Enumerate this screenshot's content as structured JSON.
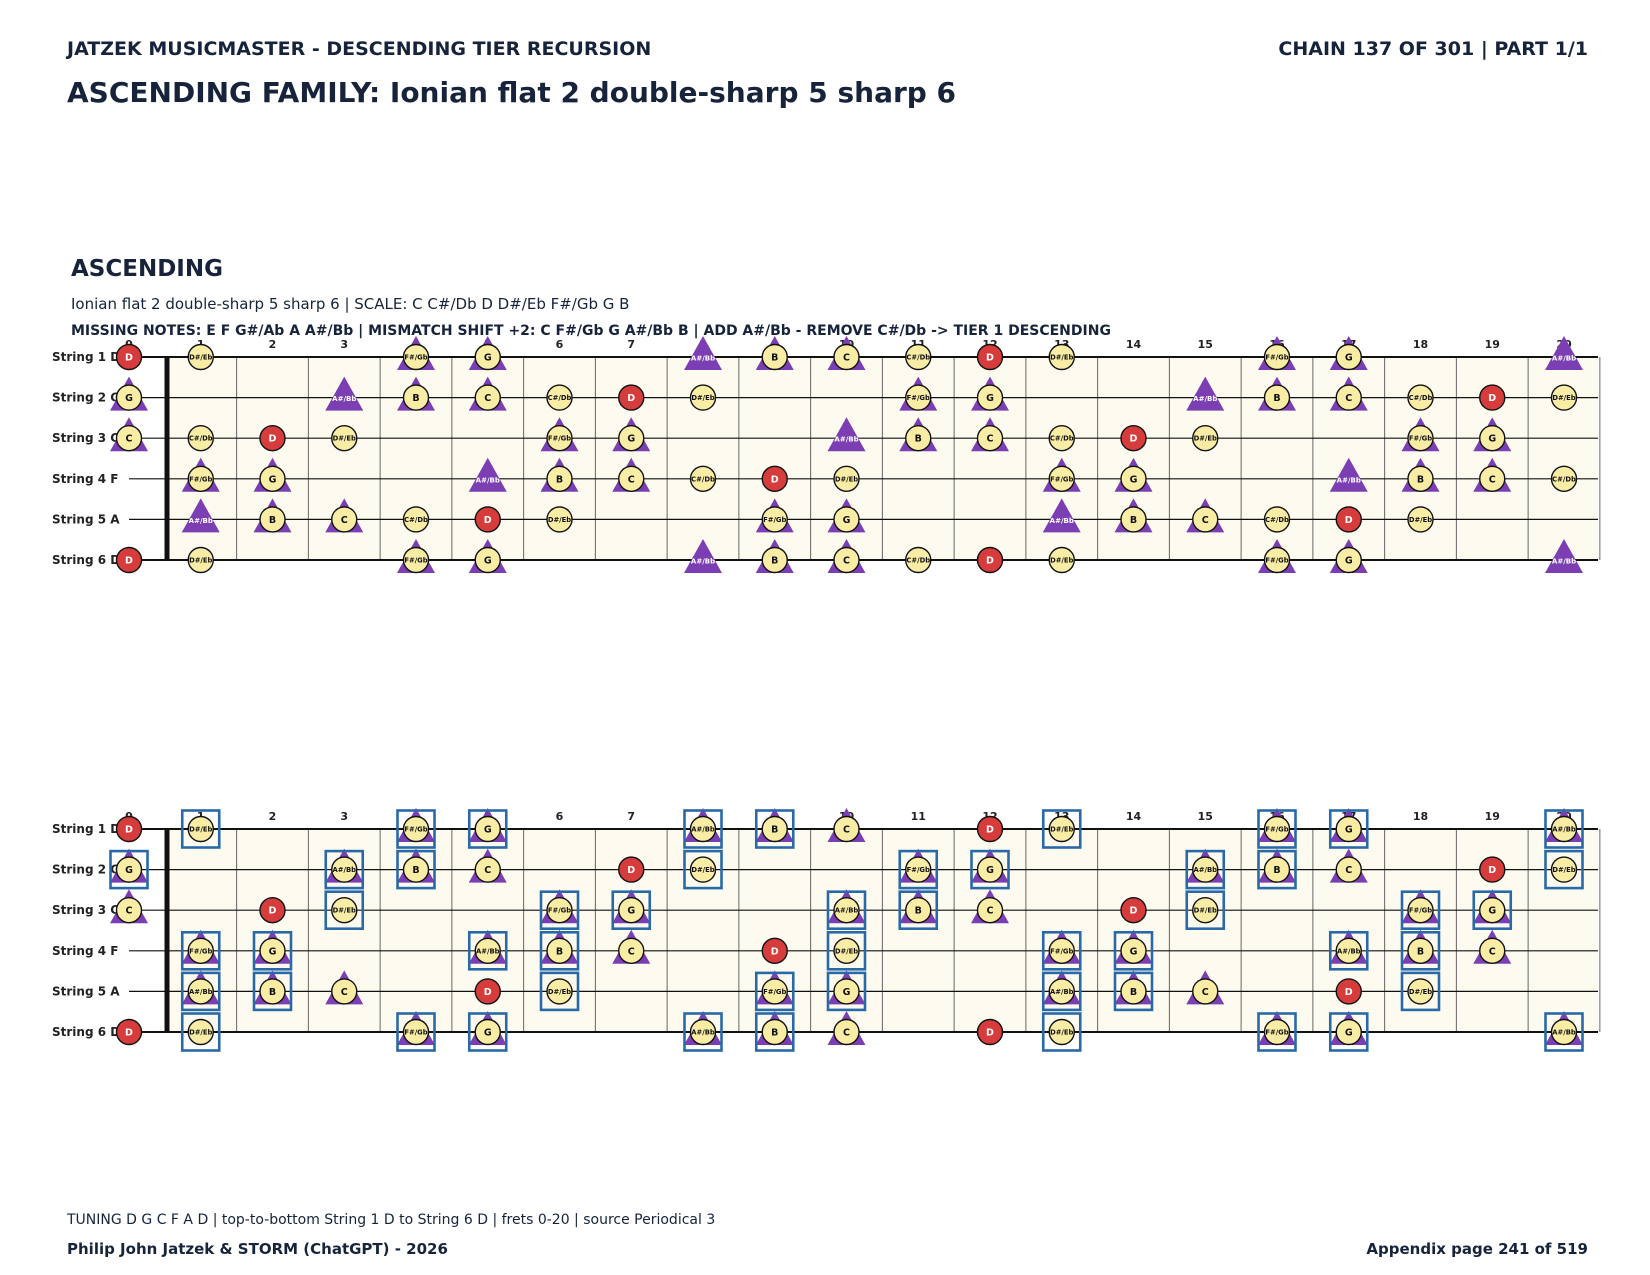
{
  "header": {
    "left": "JATZEK MUSICMASTER - DESCENDING TIER RECURSION",
    "right": "CHAIN 137 OF 301  |  PART 1/1"
  },
  "title": "ASCENDING FAMILY: Ionian flat 2 double-sharp 5 sharp 6",
  "section": {
    "heading": "ASCENDING",
    "scale_line": "Ionian flat 2 double-sharp 5 sharp 6  |  SCALE: C C#/Db D D#/Eb F#/Gb G B",
    "missing_line": "MISSING NOTES: E F G#/Ab A A#/Bb  |  MISMATCH SHIFT +2: C F#/Gb G A#/Bb B  |  ADD A#/Bb - REMOVE C#/Db -> TIER 1 DESCENDING"
  },
  "footer": {
    "tuning": "TUNING D G C F A D | top-to-bottom String 1 D to String 6 D | frets 0-20 | source Periodical 3",
    "author": "Philip John Jatzek & STORM (ChatGPT) - 2026",
    "page": "Appendix page 241 of 519"
  },
  "fretboard": {
    "string_labels": [
      "String 1 D",
      "String 2 G",
      "String 3 C",
      "String 4 F",
      "String 5 A",
      "String 6 D"
    ],
    "open_notes": [
      "D",
      "G",
      "C",
      "F",
      "A",
      "D"
    ],
    "fret_numbers": [
      "0",
      "1",
      "2",
      "3",
      "4",
      "5",
      "6",
      "7",
      "8",
      "9",
      "10",
      "11",
      "12",
      "13",
      "14",
      "15",
      "16",
      "17",
      "18",
      "19",
      "20"
    ],
    "chromatic": [
      "C",
      "C#/Db",
      "D",
      "D#/Eb",
      "E",
      "F",
      "F#/Gb",
      "G",
      "G#/Ab",
      "A",
      "A#/Bb",
      "B"
    ],
    "root": "D",
    "diagram_top": {
      "circle_notes": [
        "C",
        "C#/Db",
        "D",
        "D#/Eb",
        "F#/Gb",
        "G",
        "B"
      ],
      "triangle_notes": [
        "C",
        "F#/Gb",
        "G",
        "A#/Bb",
        "B"
      ],
      "boxed_notes": []
    },
    "diagram_bottom": {
      "circle_notes": [
        "C",
        "D",
        "D#/Eb",
        "F#/Gb",
        "G",
        "A#/Bb",
        "B"
      ],
      "triangle_notes": [
        "C",
        "F#/Gb",
        "G",
        "A#/Bb",
        "B"
      ],
      "boxed_notes": [
        "D#/Eb",
        "F#/Gb",
        "G",
        "A#/Bb",
        "B"
      ]
    }
  },
  "colors": {
    "ink": "#16233b",
    "board_bg": "#fdfbf0",
    "note_fill": "#f9eda5",
    "root_fill": "#d63c3c",
    "triangle": "#7b3fb3",
    "box": "#2a69a8",
    "grid": "#666666"
  }
}
